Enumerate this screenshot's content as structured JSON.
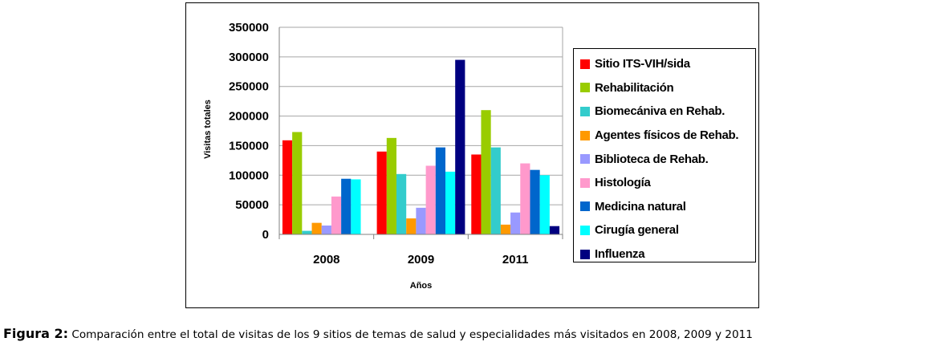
{
  "chart_data": {
    "type": "bar",
    "title": "",
    "xlabel": "Años",
    "ylabel": "Visitas totales",
    "ylim": [
      0,
      350000
    ],
    "yticks": [
      "0",
      "50000",
      "100000",
      "150000",
      "200000",
      "250000",
      "300000",
      "350000"
    ],
    "grid": true,
    "legend_position": "right",
    "categories": [
      "2008",
      "2009",
      "2011"
    ],
    "series": [
      {
        "name": "Sitio ITS-VIH/sida",
        "color": "#ff0000",
        "values": [
          159000,
          140000,
          135000
        ]
      },
      {
        "name": "Rehabilitación",
        "color": "#99cc00",
        "values": [
          173000,
          163000,
          210000
        ]
      },
      {
        "name": "Biomecániva en Rehab.",
        "color": "#33cccc",
        "values": [
          6000,
          102000,
          147000
        ]
      },
      {
        "name": "Agentes físicos de Rehab.",
        "color": "#ff9900",
        "values": [
          19500,
          27000,
          16500
        ]
      },
      {
        "name": "Biblioteca de Rehab.",
        "color": "#9999ff",
        "values": [
          15000,
          45000,
          37000
        ]
      },
      {
        "name": "Histología",
        "color": "#ff99cc",
        "values": [
          64000,
          116000,
          120000
        ]
      },
      {
        "name": "Medicina natural",
        "color": "#0066cc",
        "values": [
          94000,
          147000,
          109000
        ]
      },
      {
        "name": "Cirugía general",
        "color": "#00ffff",
        "values": [
          93000,
          106000,
          100000
        ]
      },
      {
        "name": "Influenza",
        "color": "#000080",
        "values": [
          null,
          295000,
          14000
        ]
      }
    ]
  },
  "caption": {
    "label": "Figura 2:",
    "text": "Comparación entre el total de visitas de los 9 sitios de temas de salud y especialidades más visitados en 2008, 2009 y 2011"
  }
}
